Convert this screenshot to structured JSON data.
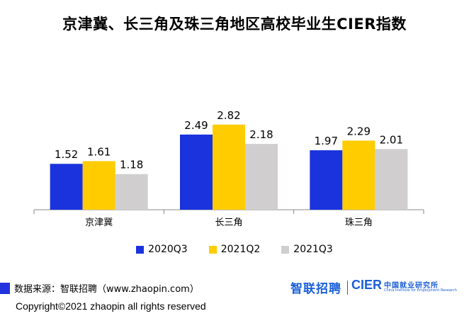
{
  "title": "京津冀、长三角及珠三角地区高校毕业生CIER指数",
  "chart_data": {
    "type": "bar",
    "categories": [
      "京津冀",
      "长三角",
      "珠三角"
    ],
    "series": [
      {
        "name": "2020Q3",
        "values": [
          1.52,
          2.49,
          1.97
        ],
        "color": "#1a33dd"
      },
      {
        "name": "2021Q2",
        "values": [
          1.61,
          2.82,
          2.29
        ],
        "color": "#ffcc00"
      },
      {
        "name": "2021Q3",
        "values": [
          1.18,
          2.18,
          2.01
        ],
        "color": "#d0cece"
      }
    ],
    "title": "京津冀、长三角及珠三角地区高校毕业生CIER指数",
    "xlabel": "",
    "ylabel": "",
    "ylim": [
      0,
      3.5
    ],
    "grid": false,
    "legend": "bottom"
  },
  "footer": {
    "source": "数据来源：智联招聘（www.zhaopin.com）",
    "logo_zhilian": "智联招聘",
    "logo_cier": "CIER",
    "logo_cier_cn": "中国就业研究所",
    "logo_cier_en": "China Institute for Employment Research"
  },
  "copyright": "Copyright©2021 zhaopin all rights reserved"
}
